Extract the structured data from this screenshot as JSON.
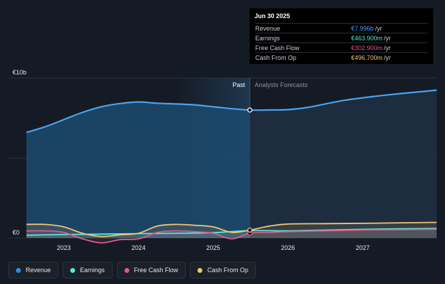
{
  "tooltip": {
    "date": "Jun 30 2025",
    "rows": [
      {
        "label": "Revenue",
        "value": "€7.996b",
        "unit": "/yr",
        "color": "#4aa3f0"
      },
      {
        "label": "Earnings",
        "value": "€463.900m",
        "unit": "/yr",
        "color": "#5de6d6"
      },
      {
        "label": "Free Cash Flow",
        "value": "€302.900m",
        "unit": "/yr",
        "color": "#e2588d"
      },
      {
        "label": "Cash From Op",
        "value": "€496.700m",
        "unit": "/yr",
        "color": "#f2c572"
      }
    ]
  },
  "legend": [
    {
      "label": "Revenue",
      "color": "#2d8fe6"
    },
    {
      "label": "Earnings",
      "color": "#5de6d6"
    },
    {
      "label": "Free Cash Flow",
      "color": "#e2588d"
    },
    {
      "label": "Cash From Op",
      "color": "#f2c572"
    }
  ],
  "chart_data": {
    "type": "line",
    "ylim": [
      0,
      10
    ],
    "y_unit": "€b",
    "y_ticks": [
      {
        "value": 10,
        "label": "€10b"
      },
      {
        "value": 0,
        "label": "€0"
      }
    ],
    "x_ticks": [
      "2023",
      "2024",
      "2025",
      "2026",
      "2027"
    ],
    "x_range": [
      2022.5,
      2027.99
    ],
    "divider_x": 2025.49,
    "past_label": "Past",
    "forecast_label": "Analysts Forecasts",
    "grid": true,
    "series": [
      {
        "name": "Revenue",
        "color": "#4aa3f0",
        "x": [
          2022.5,
          2022.75,
          2023.0,
          2023.25,
          2023.5,
          2023.75,
          2024.0,
          2024.25,
          2024.5,
          2024.75,
          2025.0,
          2025.25,
          2025.49,
          2025.75,
          2026.0,
          2026.25,
          2026.5,
          2026.75,
          2027.0,
          2027.25,
          2027.5,
          2027.75,
          2027.99
        ],
        "y": [
          6.6,
          6.95,
          7.4,
          7.85,
          8.2,
          8.4,
          8.5,
          8.42,
          8.38,
          8.32,
          8.2,
          8.08,
          7.996,
          8.0,
          8.02,
          8.15,
          8.38,
          8.6,
          8.76,
          8.9,
          9.02,
          9.13,
          9.24
        ]
      },
      {
        "name": "Earnings",
        "color": "#5de6d6",
        "x": [
          2022.5,
          2023.0,
          2023.5,
          2024.0,
          2024.5,
          2025.0,
          2025.49,
          2026.0,
          2026.5,
          2027.0,
          2027.5,
          2027.99
        ],
        "y": [
          0.18,
          0.22,
          0.25,
          0.28,
          0.3,
          0.34,
          0.464,
          0.45,
          0.5,
          0.55,
          0.58,
          0.6
        ]
      },
      {
        "name": "Free Cash Flow",
        "color": "#e2588d",
        "x": [
          2022.5,
          2022.75,
          2023.0,
          2023.25,
          2023.5,
          2023.75,
          2024.0,
          2024.25,
          2024.5,
          2024.75,
          2025.0,
          2025.25,
          2025.49,
          2025.75,
          2026.0,
          2026.5,
          2027.0,
          2027.5,
          2027.99
        ],
        "y": [
          0.45,
          0.45,
          0.35,
          -0.05,
          -0.3,
          -0.1,
          -0.05,
          0.35,
          0.45,
          0.4,
          0.3,
          -0.05,
          0.303,
          0.35,
          0.4,
          0.45,
          0.5,
          0.52,
          0.55
        ]
      },
      {
        "name": "Cash From Op",
        "color": "#f2c572",
        "x": [
          2022.5,
          2022.75,
          2023.0,
          2023.25,
          2023.5,
          2023.75,
          2024.0,
          2024.25,
          2024.5,
          2024.75,
          2025.0,
          2025.25,
          2025.49,
          2025.75,
          2026.0,
          2026.5,
          2027.0,
          2027.5,
          2027.99
        ],
        "y": [
          0.85,
          0.85,
          0.7,
          0.3,
          0.1,
          0.2,
          0.3,
          0.75,
          0.85,
          0.8,
          0.7,
          0.35,
          0.497,
          0.75,
          0.88,
          0.9,
          0.92,
          0.95,
          0.98
        ]
      }
    ]
  }
}
